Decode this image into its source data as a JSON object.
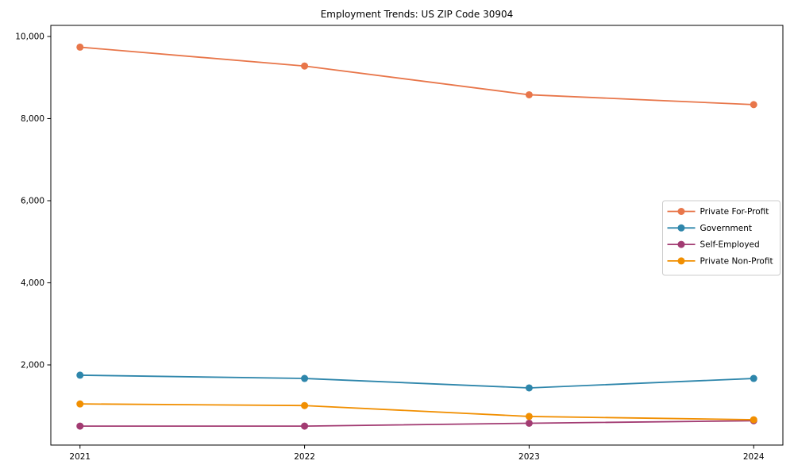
{
  "page": {
    "background": "#ffffff",
    "axis_color": "#000000",
    "legend_border_color": "#cccccc",
    "legend_background": "#ffffff"
  },
  "chart_data": {
    "type": "line",
    "title": "Employment Trends: US ZIP Code 30904",
    "xlabel": "",
    "ylabel": "",
    "x": [
      2021,
      2022,
      2023,
      2024
    ],
    "series": [
      {
        "name": "Private For-Profit",
        "color": "#e8764a",
        "values": [
          9740,
          9280,
          8580,
          8340
        ]
      },
      {
        "name": "Government",
        "color": "#2e86ab",
        "values": [
          1750,
          1670,
          1440,
          1670
        ]
      },
      {
        "name": "Self-Employed",
        "color": "#a23b72",
        "values": [
          510,
          510,
          580,
          640
        ]
      },
      {
        "name": "Private Non-Profit",
        "color": "#f18f01",
        "values": [
          1050,
          1010,
          745,
          665
        ]
      }
    ],
    "xticks": {
      "values": [
        2021,
        2022,
        2023,
        2024
      ],
      "labels": [
        "2021",
        "2022",
        "2023",
        "2024"
      ]
    },
    "yticks": {
      "values": [
        2000,
        4000,
        6000,
        8000,
        10000
      ],
      "labels": [
        "2,000",
        "4,000",
        "6,000",
        "8,000",
        "10,000"
      ]
    },
    "xlim": [
      2020.87,
      2024.13
    ],
    "ylim": [
      48,
      10270
    ],
    "grid": false,
    "legend_position": "center-right",
    "marker": "circle"
  }
}
